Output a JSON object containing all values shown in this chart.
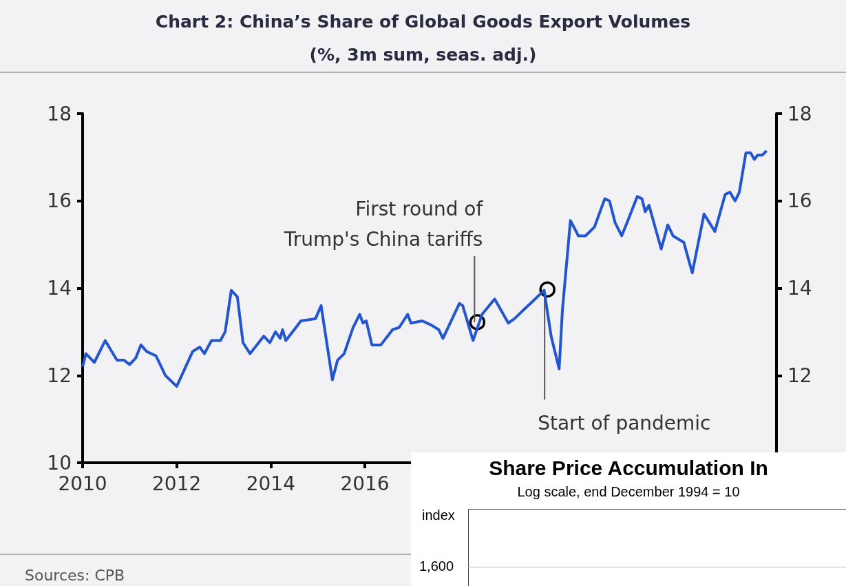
{
  "chart_data": [
    {
      "type": "line",
      "title": "Chart 2: China’s Share of Global Goods Export Volumes",
      "subtitle": "(%, 3m sum, seas. adj.)",
      "series": [
        {
          "color": "#2355cf",
          "x": [
            2010.0,
            2010.07,
            2010.25,
            2010.48,
            2010.73,
            2010.88,
            2011.0,
            2011.13,
            2011.24,
            2011.36,
            2011.56,
            2011.76,
            2012.0,
            2012.34,
            2012.49,
            2012.59,
            2012.74,
            2012.93,
            2013.03,
            2013.16,
            2013.29,
            2013.41,
            2013.56,
            2013.85,
            2013.98,
            2014.1,
            2014.2,
            2014.25,
            2014.32,
            2014.5,
            2014.64,
            2014.95,
            2015.07,
            2015.31,
            2015.42,
            2015.56,
            2015.75,
            2015.89,
            2015.96,
            2016.03,
            2016.15,
            2016.34,
            2016.59,
            2016.73,
            2016.91,
            2016.98,
            2017.22,
            2017.42,
            2017.57,
            2017.66,
            2018.01,
            2018.08,
            2018.3,
            2018.49,
            2018.76,
            2019.05,
            2019.18,
            2019.42,
            2019.52,
            2019.81,
            2019.96,
            2020.13,
            2020.2,
            2020.37,
            2020.54,
            2020.69,
            2020.88,
            2021.1,
            2021.2,
            2021.32,
            2021.46,
            2021.61,
            2021.79,
            2021.89,
            2021.96,
            2022.04,
            2022.3,
            2022.44,
            2022.55,
            2022.78,
            2022.96,
            2023.21,
            2023.44,
            2023.66,
            2023.76,
            2023.87,
            2023.96,
            2024.1,
            2024.2,
            2024.28,
            2024.35,
            2024.45,
            2024.54
          ],
          "values": [
            12.2,
            12.5,
            12.3,
            12.8,
            12.35,
            12.35,
            12.25,
            12.4,
            12.7,
            12.55,
            12.45,
            12.0,
            11.75,
            12.55,
            12.65,
            12.5,
            12.8,
            12.8,
            13.0,
            13.95,
            13.8,
            12.75,
            12.5,
            12.9,
            12.75,
            13.0,
            12.85,
            13.05,
            12.8,
            13.05,
            13.25,
            13.3,
            13.6,
            11.9,
            12.35,
            12.5,
            13.1,
            13.4,
            13.2,
            13.25,
            12.7,
            12.7,
            13.05,
            13.1,
            13.4,
            13.2,
            13.25,
            13.15,
            13.05,
            12.85,
            13.65,
            13.6,
            12.8,
            13.4,
            13.75,
            13.2,
            13.3,
            13.55,
            13.65,
            13.95,
            12.9,
            12.15,
            13.5,
            15.55,
            15.2,
            15.2,
            15.4,
            16.05,
            16.0,
            15.5,
            15.2,
            15.6,
            16.1,
            16.05,
            15.75,
            15.9,
            14.9,
            15.45,
            15.2,
            15.05,
            14.35,
            15.7,
            15.3,
            16.15,
            16.2,
            16.0,
            16.2,
            17.1,
            17.1,
            16.95,
            17.05,
            17.05,
            17.15
          ]
        }
      ],
      "xlim": [
        2010,
        2024.75
      ],
      "xticks": [
        2010,
        2012,
        2014,
        2016
      ],
      "ylim": [
        10,
        18
      ],
      "yticks": [
        10,
        12,
        14,
        16,
        18
      ],
      "y2lim": [
        10,
        18
      ],
      "y2ticks": [
        12,
        14,
        16,
        18
      ],
      "grid": false,
      "annotations": [
        {
          "text": "First round of\nTrump's China tariffs",
          "x": 2018.39,
          "y": 13.22
        },
        {
          "text": "Start of pandemic",
          "x": 2019.88,
          "y": 13.97
        },
        "Sources: CPB"
      ]
    },
    {
      "type": "other",
      "title": "Share Price Accumulation In",
      "subtitle": "Log scale, end December 1994 = 10",
      "ylabel": "index",
      "annotations": [
        "1,600"
      ]
    }
  ]
}
